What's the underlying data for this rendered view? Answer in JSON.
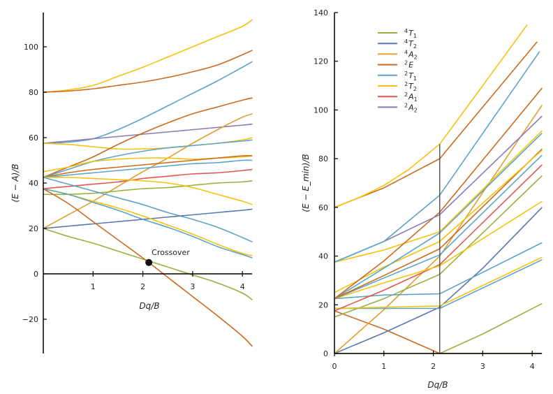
{
  "colors": {
    "4T1": "#97b03e",
    "4T2": "#5a77b0",
    "4A2": "#e0a030",
    "2E": "#cc6a1e",
    "2T1": "#5ba4c8",
    "2T2": "#f4c20d",
    "2A1": "#e2574a",
    "2A2": "#8c7ab8",
    "axis": "#000000",
    "marker": "#111111"
  },
  "chart_data": [
    {
      "type": "line",
      "xlabel": "Dq/B",
      "ylabel": "(E − A)/B",
      "xlim": [
        0,
        4.2
      ],
      "ylim": [
        -35,
        115
      ],
      "xticks": [
        "1",
        "2",
        "3",
        "4"
      ],
      "xtick_values": [
        1,
        2,
        3,
        4
      ],
      "yticks": [
        "−20",
        "0",
        "20",
        "40",
        "60",
        "80",
        "100"
      ],
      "ytick_values": [
        -20,
        0,
        20,
        40,
        60,
        80,
        100
      ],
      "grid": false,
      "x": [
        0,
        0.5,
        1,
        1.5,
        2,
        2.5,
        3,
        3.5,
        4,
        4.2
      ],
      "series": [
        {
          "term": "2T2",
          "values": [
            80,
            81,
            83,
            87,
            91,
            95.5,
            100,
            104.5,
            109,
            112
          ]
        },
        {
          "term": "2E",
          "values": [
            80,
            80.5,
            81.5,
            83,
            84.5,
            86.5,
            89,
            92,
            96.5,
            98.5
          ]
        },
        {
          "term": "2T1",
          "values": [
            57.5,
            58,
            59.5,
            63.5,
            68.5,
            74,
            79.5,
            85,
            91,
            93.5
          ]
        },
        {
          "term": "2A2",
          "values": [
            57.5,
            58.5,
            59.5,
            60.5,
            61.5,
            62.5,
            63.5,
            64.5,
            65.5,
            66
          ]
        },
        {
          "term": "2T2",
          "values": [
            57.5,
            57,
            56,
            55,
            55,
            55.5,
            56.5,
            57.5,
            59,
            60
          ]
        },
        {
          "term": "2E",
          "values": [
            42.5,
            47,
            51.5,
            57,
            62,
            66.5,
            70.5,
            73.5,
            76.5,
            77.5
          ]
        },
        {
          "term": "4A2",
          "values": [
            20,
            26,
            32,
            38.5,
            45,
            51,
            57.5,
            63.5,
            69,
            70.5
          ]
        },
        {
          "term": "2T1",
          "values": [
            42.5,
            46,
            49.5,
            52,
            54,
            55.5,
            56.5,
            57.5,
            58.5,
            59
          ]
        },
        {
          "term": "2T2",
          "values": [
            45,
            47,
            49.5,
            50.5,
            51,
            51,
            50.5,
            51,
            51.5,
            52
          ]
        },
        {
          "term": "2E",
          "values": [
            42.5,
            44.5,
            46,
            47,
            48,
            49,
            50,
            51,
            52,
            52
          ]
        },
        {
          "term": "2T1",
          "values": [
            42.5,
            43.5,
            44.5,
            45.5,
            46.5,
            47.5,
            48.5,
            49,
            50,
            50
          ]
        },
        {
          "term": "2A1",
          "values": [
            37.5,
            38.5,
            39.5,
            40.5,
            42,
            43,
            44,
            44.5,
            45.5,
            46
          ]
        },
        {
          "term": "4T1",
          "values": [
            35,
            35,
            35.5,
            36.5,
            37.5,
            38,
            39,
            40,
            40.5,
            41
          ]
        },
        {
          "term": "2T2",
          "values": [
            42.5,
            42.5,
            42,
            41.5,
            41,
            40,
            38,
            35,
            32,
            30.5
          ]
        },
        {
          "term": "2T1",
          "values": [
            42.5,
            39.5,
            36.5,
            33.5,
            30.5,
            27,
            24,
            20.5,
            16,
            14
          ]
        },
        {
          "term": "4T2",
          "values": [
            20,
            21,
            22,
            23,
            24,
            25,
            26,
            27,
            28,
            28.5
          ]
        },
        {
          "term": "2T2",
          "values": [
            37.5,
            35,
            32,
            29,
            25.5,
            21.5,
            17.5,
            13,
            9,
            8
          ]
        },
        {
          "term": "2T1",
          "values": [
            37.5,
            35,
            31.5,
            28,
            24,
            20.5,
            16.5,
            12,
            8.5,
            7
          ]
        },
        {
          "term": "4T1",
          "values": [
            20,
            16.5,
            13.5,
            10,
            6.5,
            3,
            -0.5,
            -4,
            -8.5,
            -11.5
          ]
        },
        {
          "term": "2E",
          "values": [
            37.5,
            31,
            23,
            15,
            7,
            -1.5,
            -10,
            -18.5,
            -27.5,
            -32
          ]
        }
      ],
      "annotations": [
        {
          "text": "Crossover",
          "x": 2.12,
          "y": 5
        }
      ]
    },
    {
      "type": "line",
      "xlabel": "Dq/B",
      "ylabel": "(E − E_min)/B",
      "xlim": [
        0,
        4.2
      ],
      "ylim": [
        0,
        140
      ],
      "xticks": [
        "0",
        "1",
        "2",
        "3",
        "4"
      ],
      "xtick_values": [
        0,
        1,
        2,
        3,
        4
      ],
      "yticks": [
        "0",
        "20",
        "40",
        "60",
        "80",
        "100",
        "120",
        "140"
      ],
      "ytick_values": [
        0,
        20,
        40,
        60,
        80,
        100,
        120,
        140
      ],
      "grid": false,
      "crossover_x": 2.13,
      "legend": {
        "placement": "top-left",
        "entries": [
          {
            "term": "4T1",
            "mult": "4",
            "sym": "T",
            "sub": "1"
          },
          {
            "term": "4T2",
            "mult": "4",
            "sym": "T",
            "sub": "2"
          },
          {
            "term": "4A2",
            "mult": "4",
            "sym": "A",
            "sub": "2"
          },
          {
            "term": "2E",
            "mult": "2",
            "sym": "E",
            "sub": ""
          },
          {
            "term": "2T1",
            "mult": "2",
            "sym": "T",
            "sub": "1"
          },
          {
            "term": "2T2",
            "mult": "2",
            "sym": "T",
            "sub": "2"
          },
          {
            "term": "2A1",
            "mult": "2",
            "sym": "A",
            "sub": "1"
          },
          {
            "term": "2A2",
            "mult": "2",
            "sym": "A",
            "sub": "2"
          }
        ]
      },
      "series": [
        {
          "term": "4T1",
          "x": [
            0,
            2.13,
            3,
            4.2
          ],
          "values": [
            0,
            0,
            8,
            20.5
          ]
        },
        {
          "term": "2E",
          "x": [
            0,
            1,
            2.13,
            4.2
          ],
          "values": [
            17.5,
            10,
            0,
            0
          ]
        },
        {
          "term": "4T2",
          "x": [
            0,
            1,
            2.13,
            3,
            4.2
          ],
          "values": [
            0,
            8.5,
            19,
            35,
            60
          ]
        },
        {
          "term": "4A2",
          "x": [
            0,
            1,
            2.13,
            4.2
          ],
          "values": [
            0,
            18,
            40,
            102
          ]
        },
        {
          "term": "4T1",
          "x": [
            0,
            1,
            2.13,
            4.2
          ],
          "values": [
            15,
            22.5,
            32.5,
            73
          ]
        },
        {
          "term": "2T1",
          "x": [
            0,
            1,
            2.13,
            4.2
          ],
          "values": [
            18.5,
            18.5,
            18.5,
            38.5
          ]
        },
        {
          "term": "2T2",
          "x": [
            0,
            1,
            2.13,
            4.2
          ],
          "values": [
            18.5,
            19,
            19.5,
            39.5
          ]
        },
        {
          "term": "2T1",
          "x": [
            0,
            1,
            2.13,
            4.2
          ],
          "values": [
            22.5,
            24,
            24.5,
            45.5
          ]
        },
        {
          "term": "2A1",
          "x": [
            0,
            1,
            2.13,
            4.2
          ],
          "values": [
            17.5,
            26,
            36.5,
            77.5
          ]
        },
        {
          "term": "2T2",
          "x": [
            0,
            1,
            2.13,
            4.2
          ],
          "values": [
            22.5,
            29,
            36,
            62.5
          ]
        },
        {
          "term": "2T1",
          "x": [
            0,
            1,
            2.13,
            4.2
          ],
          "values": [
            22.5,
            31,
            40.5,
            81.5
          ]
        },
        {
          "term": "2E",
          "x": [
            0,
            1,
            2.13,
            4.2
          ],
          "values": [
            22.5,
            32,
            43,
            84
          ]
        },
        {
          "term": "2T2",
          "x": [
            0,
            1,
            2.13,
            4.2
          ],
          "values": [
            25,
            35.5,
            46,
            83.5
          ]
        },
        {
          "term": "2T1",
          "x": [
            0,
            1,
            2.13,
            4.2
          ],
          "values": [
            22.5,
            35,
            49.5,
            90.5
          ]
        },
        {
          "term": "2T2",
          "x": [
            0,
            1,
            2.13,
            4.2
          ],
          "values": [
            37.5,
            42.5,
            50,
            91.5
          ]
        },
        {
          "term": "2E",
          "x": [
            0,
            1,
            2.13,
            4.2
          ],
          "values": [
            22.5,
            38,
            58,
            109
          ]
        },
        {
          "term": "2A2",
          "x": [
            0,
            1,
            2.13,
            4.2
          ],
          "values": [
            37.5,
            46,
            57,
            97.5
          ]
        },
        {
          "term": "2T1",
          "x": [
            0,
            1,
            2.13,
            4.15
          ],
          "values": [
            37.5,
            46,
            65,
            124
          ]
        },
        {
          "term": "2E",
          "x": [
            0,
            1,
            2.13,
            4.1
          ],
          "values": [
            60,
            68,
            80,
            128
          ]
        },
        {
          "term": "2T2",
          "x": [
            0,
            0.5,
            1,
            1.5,
            2.13,
            3,
            3.9
          ],
          "values": [
            60,
            64,
            69,
            75.5,
            86,
            110,
            135
          ]
        }
      ]
    }
  ]
}
